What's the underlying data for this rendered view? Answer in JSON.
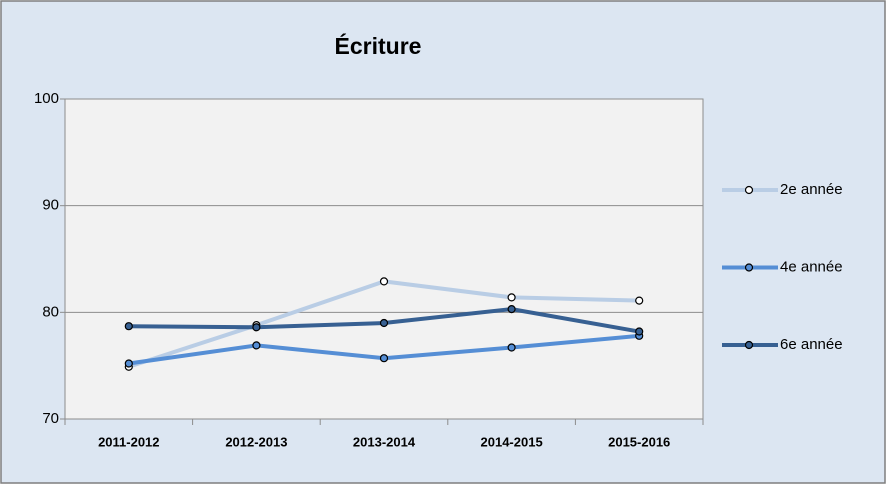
{
  "chart_data": {
    "type": "line",
    "title": "Écriture",
    "categories": [
      "2011-2012",
      "2012-2013",
      "2013-2014",
      "2014-2015",
      "2015-2016"
    ],
    "series": [
      {
        "name": "2e année",
        "color": "#b9cde5",
        "values": [
          74.9,
          78.8,
          82.9,
          81.4,
          81.1
        ]
      },
      {
        "name": "4e année",
        "color": "#558ed5",
        "values": [
          75.2,
          76.9,
          75.7,
          76.7,
          77.8
        ]
      },
      {
        "name": "6e année",
        "color": "#376092",
        "values": [
          78.7,
          78.6,
          79.0,
          80.3,
          78.2
        ]
      }
    ],
    "ylim": [
      70,
      100
    ],
    "yticks": [
      70,
      80,
      90,
      100
    ],
    "grid": true,
    "legend": "right"
  }
}
